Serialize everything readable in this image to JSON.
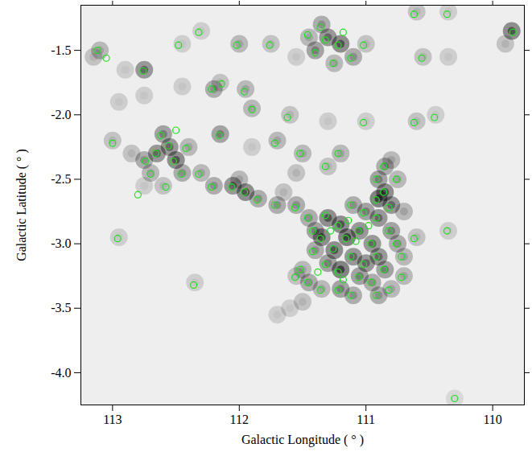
{
  "chart_data": {
    "type": "scatter",
    "x_label": "Galactic Longitude ( ° )",
    "y_label": "Galactic Latitude ( ° )",
    "xlim": [
      113.25,
      109.75
    ],
    "ylim": [
      -4.25,
      -1.15
    ],
    "xticks": [
      113,
      112,
      111,
      110
    ],
    "yticks": [
      -1.5,
      {
        "value": -2,
        "label": "-2.0"
      },
      -2.5,
      {
        "value": -3,
        "label": "-3.0"
      },
      -3.5,
      {
        "value": -4,
        "label": "-4.0"
      }
    ],
    "emission": {
      "color": "#000000",
      "x": [
        111.3,
        111.2,
        111.4,
        111.1,
        111.35,
        111.45,
        111.25,
        111.0,
        113.1,
        113.15,
        112.3,
        112.0,
        111.75,
        112.45,
        111.55,
        110.55,
        110.35,
        109.85,
        109.9,
        110.6,
        112.75,
        112.9,
        112.2,
        112.15,
        111.95,
        112.45,
        111.9,
        112.75,
        112.95,
        112.6,
        112.55,
        112.65,
        112.5,
        112.75,
        112.45,
        112.7,
        112.4,
        112.85,
        112.6,
        112.3,
        112.2,
        112.05,
        111.95,
        112.0,
        111.85,
        111.7,
        111.55,
        111.65,
        112.15,
        113.0,
        112.75,
        111.7,
        111.5,
        111.2,
        111.55,
        111.3,
        111.6,
        111.3,
        111.0,
        110.6,
        110.45,
        111.9,
        111.3,
        111.2,
        111.35,
        111.15,
        111.4,
        111.05,
        111.25,
        111.1,
        111.3,
        111.2,
        111.0,
        111.4,
        111.45,
        111.1,
        111.0,
        110.95,
        110.9,
        110.85,
        111.05,
        110.95,
        111.5,
        111.45,
        111.35,
        111.2,
        111.1,
        110.9,
        110.8,
        111.5,
        111.6,
        111.55,
        110.85,
        110.9,
        110.85,
        110.9,
        110.8,
        110.9,
        110.8,
        110.75,
        110.7,
        110.75,
        110.7,
        110.6,
        110.7,
        110.8,
        110.35,
        112.35,
        112.95,
        111.7,
        110.3,
        110.35
      ],
      "y": [
        -1.4,
        -1.45,
        -1.5,
        -1.55,
        -1.3,
        -1.4,
        -1.6,
        -1.45,
        -1.5,
        -1.55,
        -1.35,
        -1.45,
        -1.45,
        -1.45,
        -1.55,
        -1.55,
        -1.2,
        -1.35,
        -1.45,
        -1.2,
        -1.65,
        -1.65,
        -1.8,
        -1.75,
        -1.8,
        -1.78,
        -1.95,
        -1.85,
        -1.9,
        -2.15,
        -2.25,
        -2.3,
        -2.35,
        -2.35,
        -2.45,
        -2.45,
        -2.25,
        -2.3,
        -2.55,
        -2.45,
        -2.55,
        -2.55,
        -2.6,
        -2.5,
        -2.65,
        -2.7,
        -2.7,
        -2.6,
        -2.15,
        -2.2,
        -2.55,
        -2.2,
        -2.3,
        -2.3,
        -2.45,
        -2.4,
        -2.0,
        -2.05,
        -2.05,
        -2.05,
        -2.0,
        -2.25,
        -2.8,
        -2.85,
        -2.95,
        -2.95,
        -2.9,
        -2.9,
        -3.05,
        -3.1,
        -3.15,
        -3.2,
        -3.15,
        -3.05,
        -2.8,
        -2.7,
        -2.75,
        -3.0,
        -3.1,
        -3.2,
        -3.25,
        -3.3,
        -3.2,
        -3.3,
        -3.35,
        -3.35,
        -3.4,
        -3.4,
        -3.35,
        -3.45,
        -3.5,
        -3.25,
        -2.4,
        -2.5,
        -2.6,
        -2.65,
        -2.7,
        -2.8,
        -2.9,
        -3.0,
        -3.1,
        -2.5,
        -2.75,
        -2.95,
        -3.25,
        -2.35,
        -2.9,
        -3.3,
        -2.95,
        -3.55,
        -4.2,
        -1.55
      ],
      "intensity": [
        0.8,
        0.9,
        0.7,
        0.6,
        0.6,
        0.5,
        0.5,
        0.4,
        0.5,
        0.4,
        0.3,
        0.5,
        0.4,
        0.3,
        0.3,
        0.4,
        0.3,
        0.9,
        0.4,
        0.4,
        0.8,
        0.3,
        0.6,
        0.4,
        0.5,
        0.3,
        0.5,
        0.3,
        0.3,
        0.7,
        0.8,
        0.8,
        0.9,
        0.6,
        0.6,
        0.5,
        0.5,
        0.4,
        0.4,
        0.5,
        0.6,
        0.8,
        0.9,
        0.5,
        0.6,
        0.6,
        0.6,
        0.4,
        0.7,
        0.4,
        0.3,
        0.5,
        0.5,
        0.5,
        0.4,
        0.4,
        0.4,
        0.3,
        0.3,
        0.4,
        0.3,
        0.3,
        0.9,
        0.9,
        0.9,
        1.0,
        0.7,
        0.8,
        0.9,
        0.8,
        0.7,
        1.0,
        0.8,
        0.6,
        0.6,
        0.6,
        0.7,
        0.8,
        0.8,
        0.7,
        0.7,
        0.6,
        0.5,
        0.6,
        0.5,
        0.7,
        0.6,
        0.6,
        0.5,
        0.4,
        0.3,
        0.4,
        0.6,
        0.7,
        0.9,
        1.0,
        0.8,
        0.8,
        0.7,
        0.6,
        0.5,
        0.5,
        0.5,
        0.4,
        0.5,
        0.5,
        0.3,
        0.3,
        0.3,
        0.3,
        0.2,
        0.3
      ]
    },
    "clumps": {
      "color": "#22dd22",
      "x": [
        111.32,
        111.22,
        111.4,
        111.12,
        111.36,
        111.46,
        111.26,
        111.02,
        111.18,
        113.12,
        113.05,
        112.32,
        112.02,
        111.76,
        112.48,
        110.56,
        110.36,
        109.84,
        110.62,
        112.76,
        112.22,
        112.14,
        111.96,
        111.9,
        112.62,
        112.56,
        112.66,
        112.52,
        112.74,
        112.46,
        112.7,
        112.42,
        112.58,
        112.32,
        112.22,
        112.06,
        111.96,
        111.86,
        111.72,
        111.56,
        112.16,
        113.0,
        111.72,
        111.52,
        111.22,
        111.32,
        111.62,
        111.02,
        110.62,
        110.46,
        111.32,
        111.22,
        111.36,
        111.16,
        111.42,
        111.06,
        111.26,
        111.12,
        111.32,
        111.22,
        111.02,
        111.42,
        111.46,
        111.12,
        111.02,
        110.96,
        110.92,
        110.86,
        111.06,
        110.96,
        111.52,
        111.46,
        111.36,
        111.22,
        111.12,
        110.92,
        110.82,
        111.56,
        110.86,
        110.92,
        110.86,
        110.92,
        110.82,
        110.92,
        110.82,
        110.76,
        110.72,
        110.76,
        110.62,
        110.72,
        110.36,
        112.36,
        112.96,
        110.3,
        112.8,
        112.5,
        111.28,
        111.08,
        110.98,
        111.18,
        111.38,
        111.14
      ],
      "y": [
        -1.42,
        -1.46,
        -1.52,
        -1.56,
        -1.32,
        -1.38,
        -1.6,
        -1.46,
        -1.36,
        -1.5,
        -1.56,
        -1.36,
        -1.46,
        -1.46,
        -1.46,
        -1.56,
        -1.22,
        -1.36,
        -1.22,
        -1.66,
        -1.8,
        -1.76,
        -1.82,
        -1.96,
        -2.16,
        -2.24,
        -2.3,
        -2.36,
        -2.36,
        -2.46,
        -2.46,
        -2.26,
        -2.56,
        -2.46,
        -2.56,
        -2.56,
        -2.6,
        -2.66,
        -2.7,
        -2.72,
        -2.16,
        -2.22,
        -2.22,
        -2.3,
        -2.3,
        -2.4,
        -2.02,
        -2.06,
        -2.06,
        -2.02,
        -2.78,
        -2.86,
        -2.96,
        -2.96,
        -2.9,
        -2.9,
        -3.04,
        -3.1,
        -3.16,
        -3.22,
        -3.16,
        -3.06,
        -2.8,
        -2.7,
        -2.76,
        -3.0,
        -3.1,
        -3.2,
        -3.26,
        -3.3,
        -3.2,
        -3.3,
        -3.36,
        -3.36,
        -3.4,
        -3.4,
        -3.36,
        -3.26,
        -2.4,
        -2.5,
        -2.6,
        -2.66,
        -2.72,
        -2.8,
        -2.9,
        -3.0,
        -3.1,
        -2.5,
        -2.96,
        -3.26,
        -2.9,
        -3.32,
        -2.96,
        -4.2,
        -2.62,
        -2.12,
        -2.9,
        -2.98,
        -2.86,
        -3.28,
        -3.22,
        -2.82
      ]
    }
  }
}
